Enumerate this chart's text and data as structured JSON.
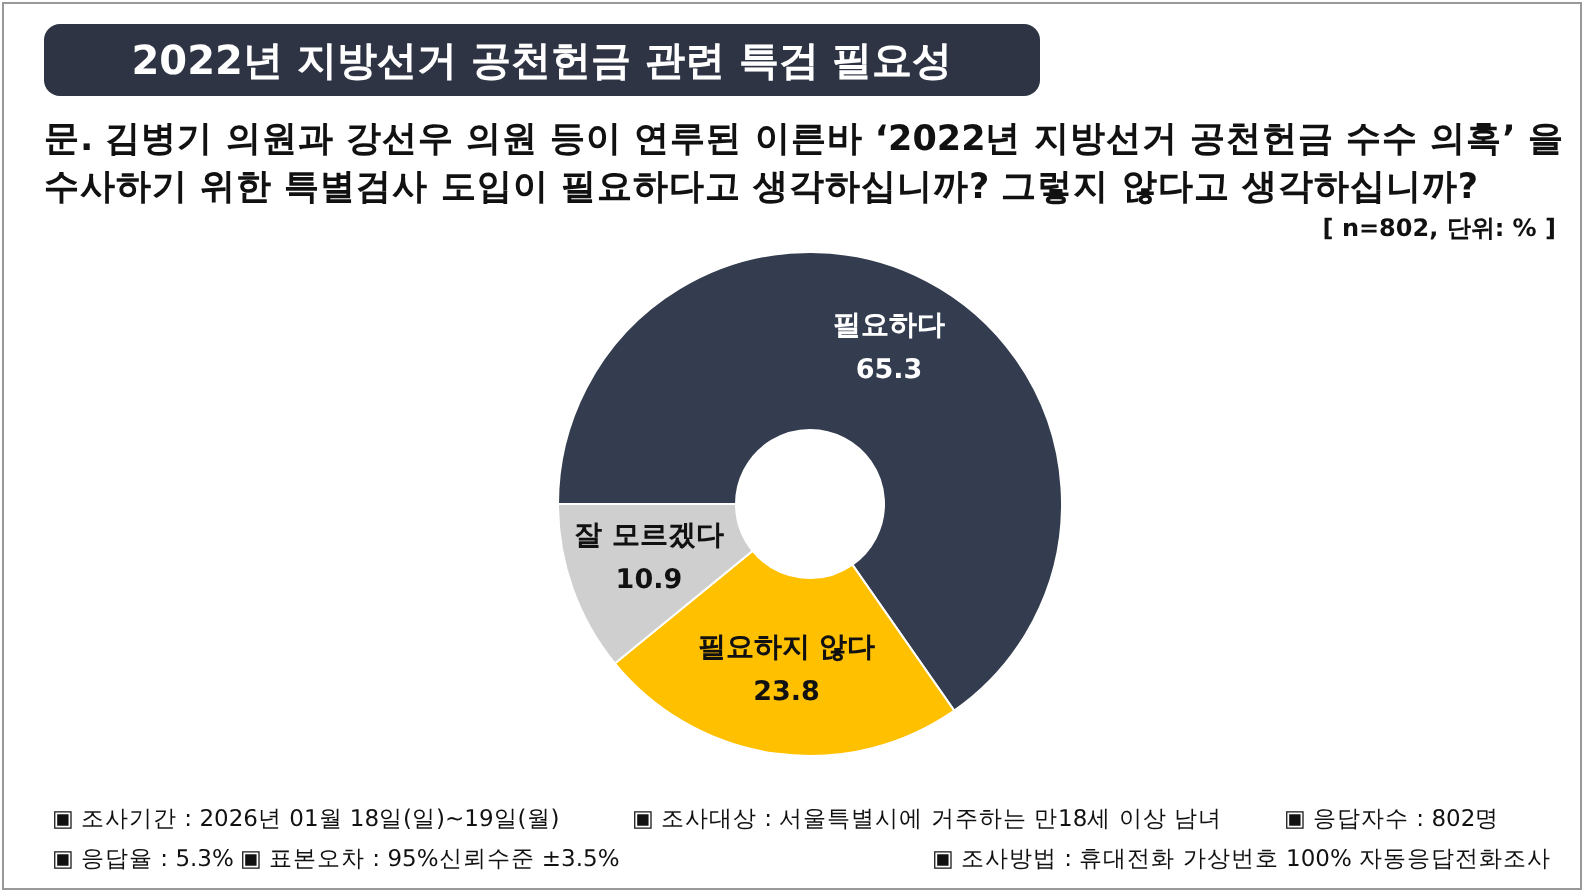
{
  "chart_data": {
    "type": "donut",
    "title": "2022년 지방선거 공천헌금 관련 특검 필요성",
    "subtitle": "문. 김병기 의원과 강선우 의원 등이 연루된 이른바 ‘2022년 지방선거 공천헌금 수수 의혹’ 을 수사하기 위한 특별검사 도입이 필요하다고 생각하십니까? 그렇지 않다고 생각하십니까?",
    "categories": [
      "필요하다",
      "필요하지 않다",
      "잘 모르겠다"
    ],
    "values": [
      65.3,
      23.8,
      10.9
    ],
    "colors": [
      "#343d4f",
      "#ffc000",
      "#d0cfd0"
    ],
    "data_labels": true,
    "annotations": [
      "[ n=802, 단위: % ]",
      "▣ 조사기간 : 2026년 01월 18일(일)~19일(월)",
      "▣ 조사대상 : 서울특별시에 거주하는 만18세 이상 남녀",
      "▣ 응답자수 : 802명",
      "▣ 응답율 : 5.3%",
      "▣ 표본오차 : 95%신뢰수준 ±3.5%",
      "▣ 조사방법 : 휴대전화 가상번호 100% 자동응답전화조사"
    ]
  }
}
